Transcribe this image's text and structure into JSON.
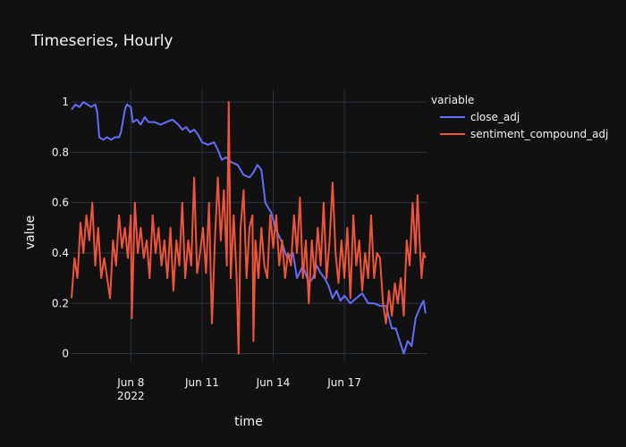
{
  "chart_data": {
    "type": "line",
    "title": "Timeseries, Hourly",
    "xlabel": "time",
    "ylabel": "value",
    "xlim": [
      "2022-06-05T12:00",
      "2022-06-20T12:00"
    ],
    "ylim": [
      -0.03,
      1.05
    ],
    "x_ticks": [
      {
        "value": "2022-06-08",
        "label": "Jun 8",
        "sublabel": "2022"
      },
      {
        "value": "2022-06-11",
        "label": "Jun 11",
        "sublabel": ""
      },
      {
        "value": "2022-06-14",
        "label": "Jun 14",
        "sublabel": ""
      },
      {
        "value": "2022-06-17",
        "label": "Jun 17",
        "sublabel": ""
      }
    ],
    "y_ticks": [
      {
        "value": 0,
        "label": "0"
      },
      {
        "value": 0.2,
        "label": "0.2"
      },
      {
        "value": 0.4,
        "label": "0.4"
      },
      {
        "value": 0.6,
        "label": "0.6"
      },
      {
        "value": 0.8,
        "label": "0.8"
      },
      {
        "value": 1,
        "label": "1"
      }
    ],
    "grid": true,
    "legend": {
      "title": "variable",
      "placement": "top-right"
    },
    "series": [
      {
        "name": "close_adj",
        "color": "#636efa",
        "points": [
          [
            "2022-06-05T12:00",
            0.97
          ],
          [
            "2022-06-05T16:00",
            0.99
          ],
          [
            "2022-06-05T20:00",
            0.98
          ],
          [
            "2022-06-06T00:00",
            1.0
          ],
          [
            "2022-06-06T04:00",
            0.99
          ],
          [
            "2022-06-06T08:00",
            0.98
          ],
          [
            "2022-06-06T12:00",
            0.99
          ],
          [
            "2022-06-06T14:00",
            0.96
          ],
          [
            "2022-06-06T16:00",
            0.86
          ],
          [
            "2022-06-06T20:00",
            0.85
          ],
          [
            "2022-06-07T00:00",
            0.86
          ],
          [
            "2022-06-07T04:00",
            0.85
          ],
          [
            "2022-06-07T08:00",
            0.86
          ],
          [
            "2022-06-07T12:00",
            0.86
          ],
          [
            "2022-06-07T14:00",
            0.88
          ],
          [
            "2022-06-07T18:00",
            0.97
          ],
          [
            "2022-06-07T20:00",
            0.99
          ],
          [
            "2022-06-08T00:00",
            0.98
          ],
          [
            "2022-06-08T02:00",
            0.92
          ],
          [
            "2022-06-08T06:00",
            0.93
          ],
          [
            "2022-06-08T10:00",
            0.91
          ],
          [
            "2022-06-08T14:00",
            0.94
          ],
          [
            "2022-06-08T18:00",
            0.92
          ],
          [
            "2022-06-09T00:00",
            0.92
          ],
          [
            "2022-06-09T06:00",
            0.91
          ],
          [
            "2022-06-09T12:00",
            0.92
          ],
          [
            "2022-06-09T18:00",
            0.93
          ],
          [
            "2022-06-10T00:00",
            0.91
          ],
          [
            "2022-06-10T04:00",
            0.89
          ],
          [
            "2022-06-10T08:00",
            0.9
          ],
          [
            "2022-06-10T12:00",
            0.88
          ],
          [
            "2022-06-10T16:00",
            0.89
          ],
          [
            "2022-06-10T20:00",
            0.87
          ],
          [
            "2022-06-11T00:00",
            0.84
          ],
          [
            "2022-06-11T06:00",
            0.83
          ],
          [
            "2022-06-11T12:00",
            0.84
          ],
          [
            "2022-06-11T16:00",
            0.81
          ],
          [
            "2022-06-11T20:00",
            0.77
          ],
          [
            "2022-06-12T00:00",
            0.78
          ],
          [
            "2022-06-12T06:00",
            0.76
          ],
          [
            "2022-06-12T12:00",
            0.75
          ],
          [
            "2022-06-12T18:00",
            0.71
          ],
          [
            "2022-06-13T00:00",
            0.7
          ],
          [
            "2022-06-13T04:00",
            0.72
          ],
          [
            "2022-06-13T08:00",
            0.75
          ],
          [
            "2022-06-13T12:00",
            0.73
          ],
          [
            "2022-06-13T16:00",
            0.6
          ],
          [
            "2022-06-13T22:00",
            0.56
          ],
          [
            "2022-06-14T02:00",
            0.5
          ],
          [
            "2022-06-14T08:00",
            0.45
          ],
          [
            "2022-06-14T14:00",
            0.38
          ],
          [
            "2022-06-14T20:00",
            0.4
          ],
          [
            "2022-06-15T00:00",
            0.3
          ],
          [
            "2022-06-15T06:00",
            0.35
          ],
          [
            "2022-06-15T12:00",
            0.28
          ],
          [
            "2022-06-15T16:00",
            0.3
          ],
          [
            "2022-06-15T20:00",
            0.35
          ],
          [
            "2022-06-16T00:00",
            0.32
          ],
          [
            "2022-06-16T04:00",
            0.3
          ],
          [
            "2022-06-16T08:00",
            0.27
          ],
          [
            "2022-06-16T12:00",
            0.22
          ],
          [
            "2022-06-16T16:00",
            0.25
          ],
          [
            "2022-06-16T20:00",
            0.21
          ],
          [
            "2022-06-17T00:00",
            0.23
          ],
          [
            "2022-06-17T06:00",
            0.2
          ],
          [
            "2022-06-17T12:00",
            0.22
          ],
          [
            "2022-06-17T18:00",
            0.24
          ],
          [
            "2022-06-18T00:00",
            0.2
          ],
          [
            "2022-06-18T06:00",
            0.2
          ],
          [
            "2022-06-18T12:00",
            0.19
          ],
          [
            "2022-06-18T18:00",
            0.19
          ],
          [
            "2022-06-19T00:00",
            0.1
          ],
          [
            "2022-06-19T04:00",
            0.1
          ],
          [
            "2022-06-19T08:00",
            0.05
          ],
          [
            "2022-06-19T12:00",
            0.0
          ],
          [
            "2022-06-19T16:00",
            0.05
          ],
          [
            "2022-06-19T20:00",
            0.03
          ],
          [
            "2022-06-20T00:00",
            0.14
          ],
          [
            "2022-06-20T04:00",
            0.18
          ],
          [
            "2022-06-20T08:00",
            0.21
          ],
          [
            "2022-06-20T10:00",
            0.16
          ]
        ]
      },
      {
        "name": "sentiment_compound_adj",
        "color": "#ef553b",
        "points": [
          [
            "2022-06-05T12:00",
            0.22
          ],
          [
            "2022-06-05T15:00",
            0.38
          ],
          [
            "2022-06-05T18:00",
            0.3
          ],
          [
            "2022-06-05T21:00",
            0.52
          ],
          [
            "2022-06-06T00:00",
            0.4
          ],
          [
            "2022-06-06T03:00",
            0.55
          ],
          [
            "2022-06-06T06:00",
            0.45
          ],
          [
            "2022-06-06T09:00",
            0.6
          ],
          [
            "2022-06-06T12:00",
            0.35
          ],
          [
            "2022-06-06T15:00",
            0.5
          ],
          [
            "2022-06-06T18:00",
            0.3
          ],
          [
            "2022-06-06T21:00",
            0.38
          ],
          [
            "2022-06-07T00:00",
            0.3
          ],
          [
            "2022-06-07T03:00",
            0.22
          ],
          [
            "2022-06-07T06:00",
            0.45
          ],
          [
            "2022-06-07T09:00",
            0.35
          ],
          [
            "2022-06-07T12:00",
            0.55
          ],
          [
            "2022-06-07T15:00",
            0.42
          ],
          [
            "2022-06-07T18:00",
            0.5
          ],
          [
            "2022-06-07T21:00",
            0.38
          ],
          [
            "2022-06-08T00:00",
            0.55
          ],
          [
            "2022-06-08T01:00",
            0.14
          ],
          [
            "2022-06-08T04:00",
            0.6
          ],
          [
            "2022-06-08T07:00",
            0.4
          ],
          [
            "2022-06-08T10:00",
            0.5
          ],
          [
            "2022-06-08T13:00",
            0.38
          ],
          [
            "2022-06-08T16:00",
            0.45
          ],
          [
            "2022-06-08T19:00",
            0.3
          ],
          [
            "2022-06-08T22:00",
            0.55
          ],
          [
            "2022-06-09T01:00",
            0.4
          ],
          [
            "2022-06-09T04:00",
            0.5
          ],
          [
            "2022-06-09T07:00",
            0.35
          ],
          [
            "2022-06-09T10:00",
            0.45
          ],
          [
            "2022-06-09T13:00",
            0.3
          ],
          [
            "2022-06-09T16:00",
            0.5
          ],
          [
            "2022-06-09T19:00",
            0.25
          ],
          [
            "2022-06-09T22:00",
            0.45
          ],
          [
            "2022-06-10T01:00",
            0.35
          ],
          [
            "2022-06-10T04:00",
            0.6
          ],
          [
            "2022-06-10T07:00",
            0.3
          ],
          [
            "2022-06-10T10:00",
            0.45
          ],
          [
            "2022-06-10T13:00",
            0.35
          ],
          [
            "2022-06-10T16:00",
            0.7
          ],
          [
            "2022-06-10T19:00",
            0.32
          ],
          [
            "2022-06-10T22:00",
            0.4
          ],
          [
            "2022-06-11T01:00",
            0.5
          ],
          [
            "2022-06-11T04:00",
            0.32
          ],
          [
            "2022-06-11T07:00",
            0.6
          ],
          [
            "2022-06-11T10:00",
            0.12
          ],
          [
            "2022-06-11T13:00",
            0.45
          ],
          [
            "2022-06-11T16:00",
            0.7
          ],
          [
            "2022-06-11T19:00",
            0.45
          ],
          [
            "2022-06-11T22:00",
            0.65
          ],
          [
            "2022-06-12T01:00",
            0.35
          ],
          [
            "2022-06-12T03:00",
            1.0
          ],
          [
            "2022-06-12T05:00",
            0.3
          ],
          [
            "2022-06-12T08:00",
            0.55
          ],
          [
            "2022-06-12T11:00",
            0.3
          ],
          [
            "2022-06-12T13:00",
            0.0
          ],
          [
            "2022-06-12T15:00",
            0.5
          ],
          [
            "2022-06-12T18:00",
            0.65
          ],
          [
            "2022-06-12T21:00",
            0.3
          ],
          [
            "2022-06-13T00:00",
            0.5
          ],
          [
            "2022-06-13T03:00",
            0.55
          ],
          [
            "2022-06-13T04:00",
            0.05
          ],
          [
            "2022-06-13T06:00",
            0.45
          ],
          [
            "2022-06-13T09:00",
            0.3
          ],
          [
            "2022-06-13T12:00",
            0.5
          ],
          [
            "2022-06-13T15:00",
            0.35
          ],
          [
            "2022-06-13T18:00",
            0.3
          ],
          [
            "2022-06-13T21:00",
            0.55
          ],
          [
            "2022-06-14T00:00",
            0.42
          ],
          [
            "2022-06-14T03:00",
            0.55
          ],
          [
            "2022-06-14T06:00",
            0.35
          ],
          [
            "2022-06-14T09:00",
            0.45
          ],
          [
            "2022-06-14T12:00",
            0.3
          ],
          [
            "2022-06-14T15:00",
            0.4
          ],
          [
            "2022-06-14T18:00",
            0.35
          ],
          [
            "2022-06-14T21:00",
            0.55
          ],
          [
            "2022-06-15T00:00",
            0.4
          ],
          [
            "2022-06-15T03:00",
            0.62
          ],
          [
            "2022-06-15T06:00",
            0.3
          ],
          [
            "2022-06-15T09:00",
            0.45
          ],
          [
            "2022-06-15T12:00",
            0.2
          ],
          [
            "2022-06-15T15:00",
            0.45
          ],
          [
            "2022-06-15T18:00",
            0.3
          ],
          [
            "2022-06-15T21:00",
            0.5
          ],
          [
            "2022-06-16T00:00",
            0.35
          ],
          [
            "2022-06-16T03:00",
            0.6
          ],
          [
            "2022-06-16T06:00",
            0.3
          ],
          [
            "2022-06-16T09:00",
            0.45
          ],
          [
            "2022-06-16T12:00",
            0.68
          ],
          [
            "2022-06-16T15:00",
            0.4
          ],
          [
            "2022-06-16T18:00",
            0.28
          ],
          [
            "2022-06-16T21:00",
            0.45
          ],
          [
            "2022-06-17T00:00",
            0.3
          ],
          [
            "2022-06-17T03:00",
            0.5
          ],
          [
            "2022-06-17T06:00",
            0.22
          ],
          [
            "2022-06-17T09:00",
            0.55
          ],
          [
            "2022-06-17T12:00",
            0.35
          ],
          [
            "2022-06-17T15:00",
            0.45
          ],
          [
            "2022-06-17T18:00",
            0.25
          ],
          [
            "2022-06-17T21:00",
            0.4
          ],
          [
            "2022-06-18T00:00",
            0.3
          ],
          [
            "2022-06-18T03:00",
            0.55
          ],
          [
            "2022-06-18T06:00",
            0.3
          ],
          [
            "2022-06-18T09:00",
            0.4
          ],
          [
            "2022-06-18T12:00",
            0.38
          ],
          [
            "2022-06-18T15:00",
            0.2
          ],
          [
            "2022-06-18T18:00",
            0.12
          ],
          [
            "2022-06-18T21:00",
            0.25
          ],
          [
            "2022-06-19T00:00",
            0.15
          ],
          [
            "2022-06-19T03:00",
            0.28
          ],
          [
            "2022-06-19T06:00",
            0.2
          ],
          [
            "2022-06-19T09:00",
            0.3
          ],
          [
            "2022-06-19T12:00",
            0.15
          ],
          [
            "2022-06-19T15:00",
            0.45
          ],
          [
            "2022-06-19T18:00",
            0.35
          ],
          [
            "2022-06-19T21:00",
            0.6
          ],
          [
            "2022-06-20T00:00",
            0.4
          ],
          [
            "2022-06-20T02:00",
            0.63
          ],
          [
            "2022-06-20T04:00",
            0.45
          ],
          [
            "2022-06-20T06:00",
            0.3
          ],
          [
            "2022-06-20T08:00",
            0.4
          ],
          [
            "2022-06-20T10:00",
            0.38
          ]
        ]
      }
    ]
  }
}
